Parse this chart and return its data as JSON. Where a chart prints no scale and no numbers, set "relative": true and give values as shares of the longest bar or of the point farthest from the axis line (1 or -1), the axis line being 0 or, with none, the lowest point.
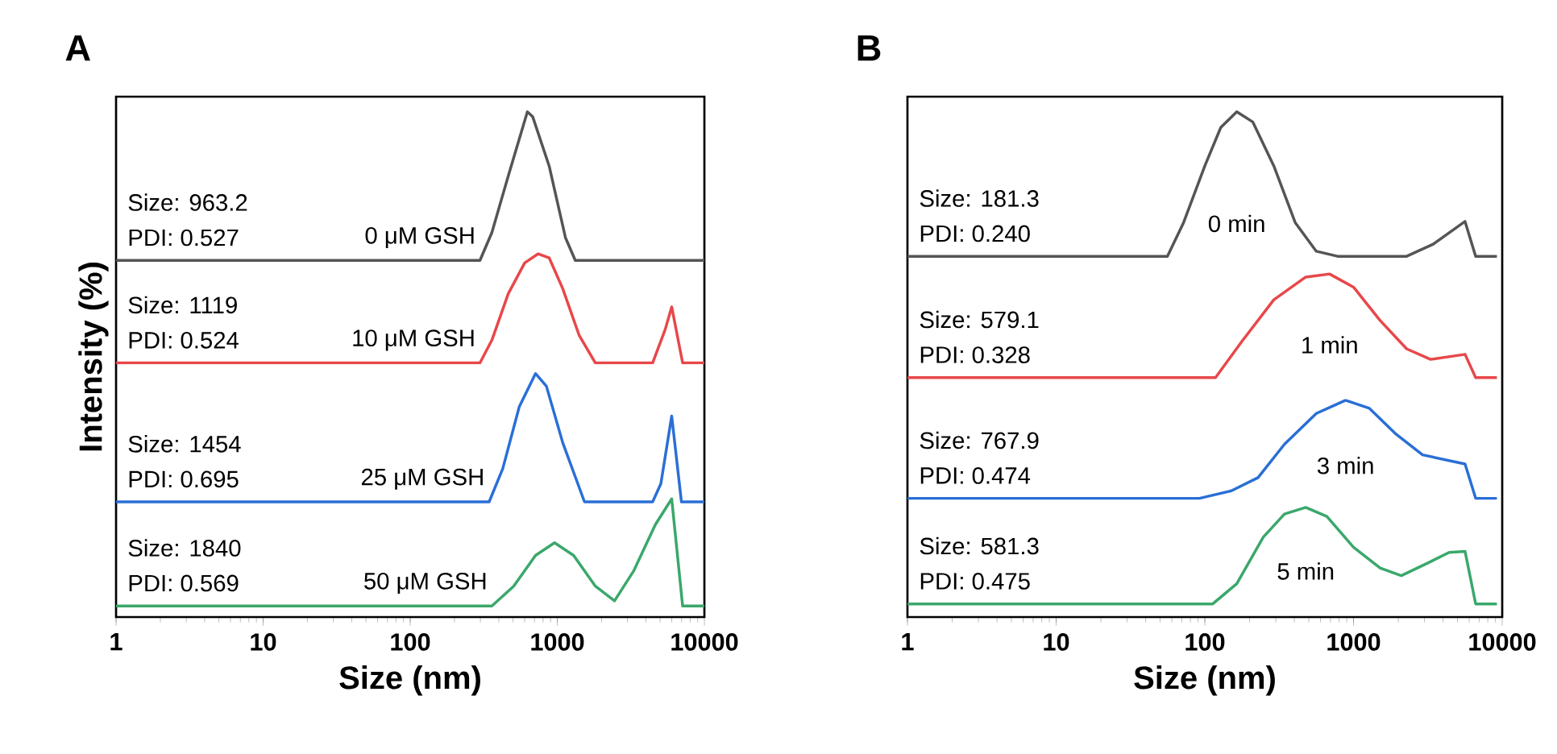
{
  "chart_data": [
    {
      "type": "line",
      "title": "A",
      "xlabel": "Size (nm)",
      "ylabel": "Intensity (%)",
      "log": "x",
      "relative": true,
      "xlim": [
        1,
        10000
      ],
      "xticks": [
        1,
        10,
        100,
        1000,
        10000
      ],
      "series": [
        {
          "name": "0 μM GSH",
          "color": "#555555",
          "x": [
            1,
            298,
            359,
            464,
            626,
            681,
            880,
            1136,
            1325,
            10000
          ],
          "values": [
            0.706,
            0.706,
            0.761,
            0.873,
            1.0,
            0.99,
            0.893,
            0.751,
            0.706,
            0.706
          ]
        },
        {
          "name": "10 μM GSH",
          "color": "#e8474a",
          "x": [
            1,
            298,
            359,
            464,
            600,
            742,
            880,
            1089,
            1406,
            1816,
            4446,
            5411,
            5995,
            7113,
            10000
          ],
          "values": [
            0.503,
            0.503,
            0.548,
            0.64,
            0.701,
            0.719,
            0.711,
            0.65,
            0.558,
            0.503,
            0.503,
            0.569,
            0.614,
            0.503,
            0.503
          ]
        },
        {
          "name": "25 μM GSH",
          "color": "#2a6fd6",
          "x": [
            1,
            344,
            426,
            551,
            711,
            843,
            1089,
            1531,
            4446,
            5058,
            5995,
            6982,
            10000
          ],
          "values": [
            0.228,
            0.228,
            0.294,
            0.416,
            0.482,
            0.457,
            0.345,
            0.228,
            0.228,
            0.264,
            0.398,
            0.228,
            0.228
          ]
        },
        {
          "name": "50 μM GSH",
          "color": "#3aa86b",
          "x": [
            1,
            359,
            505,
            711,
            958,
            1291,
            1816,
            2449,
            3302,
            4641,
            5995,
            7113,
            10000
          ],
          "values": [
            0.022,
            0.022,
            0.061,
            0.122,
            0.147,
            0.122,
            0.061,
            0.032,
            0.091,
            0.183,
            0.234,
            0.022,
            0.022
          ]
        }
      ],
      "annotations": [
        "Size: 963.2",
        "PDI: 0.527",
        "Size: 1119",
        "PDI: 0.524",
        "Size: 1454",
        "PDI: 0.695",
        "Size: 1840",
        "PDI: 0.569"
      ]
    },
    {
      "type": "line",
      "title": "B",
      "xlabel": "Size (nm)",
      "log": "x",
      "relative": true,
      "xlim": [
        1,
        10000
      ],
      "xticks": [
        1,
        10,
        100,
        1000,
        10000
      ],
      "series": [
        {
          "name": "0 min",
          "color": "#555555",
          "x": [
            1,
            56,
            72,
            100,
            128,
            164,
            210,
            291,
            405,
            562,
            781,
            2275,
            3433,
            5623,
            6629,
            9210
          ],
          "values": [
            0.714,
            0.714,
            0.781,
            0.893,
            0.969,
            1.0,
            0.98,
            0.893,
            0.781,
            0.724,
            0.714,
            0.714,
            0.738,
            0.783,
            0.714,
            0.714
          ]
        },
        {
          "name": "1 min",
          "color": "#e8474a",
          "x": [
            1,
            118,
            178,
            291,
            477,
            690,
            1000,
            1510,
            2275,
            3296,
            5623,
            6629,
            9210
          ],
          "values": [
            0.474,
            0.474,
            0.546,
            0.628,
            0.673,
            0.679,
            0.653,
            0.587,
            0.531,
            0.51,
            0.52,
            0.474,
            0.474
          ]
        },
        {
          "name": "3 min",
          "color": "#2a6fd6",
          "x": [
            1,
            92,
            151,
            228,
            343,
            562,
            884,
            1280,
            1931,
            2911,
            5623,
            6629,
            9210
          ],
          "values": [
            0.235,
            0.235,
            0.25,
            0.276,
            0.342,
            0.403,
            0.429,
            0.413,
            0.362,
            0.321,
            0.303,
            0.235,
            0.235
          ]
        },
        {
          "name": "5 min",
          "color": "#3aa86b",
          "x": [
            1,
            113,
            164,
            247,
            343,
            477,
            662,
            1000,
            1510,
            2094,
            3162,
            4394,
            5623,
            6629,
            9210
          ],
          "values": [
            0.026,
            0.026,
            0.066,
            0.158,
            0.204,
            0.217,
            0.199,
            0.138,
            0.097,
            0.082,
            0.107,
            0.128,
            0.13,
            0.026,
            0.026
          ]
        }
      ],
      "annotations": [
        "Size: 181.3",
        "PDI: 0.240",
        "Size: 579.1",
        "PDI: 0.328",
        "Size: 767.9",
        "PDI: 0.474",
        "Size: 581.3",
        "PDI: 0.475"
      ]
    }
  ]
}
